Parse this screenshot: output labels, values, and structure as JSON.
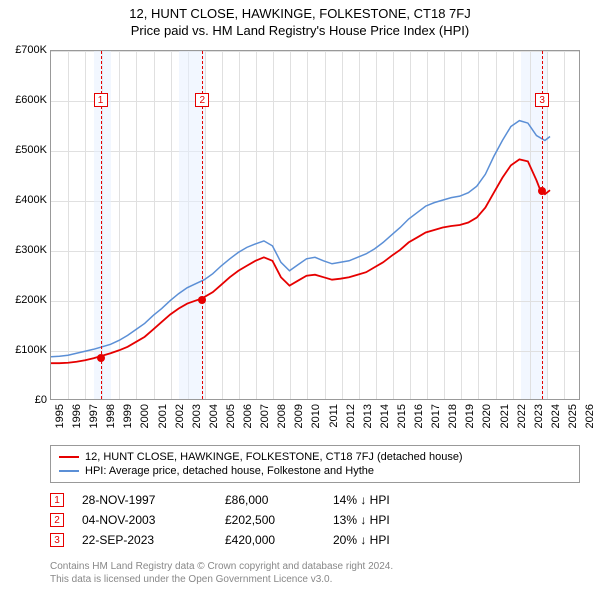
{
  "title1": "12, HUNT CLOSE, HAWKINGE, FOLKESTONE, CT18 7FJ",
  "title2": "Price paid vs. HM Land Registry's House Price Index (HPI)",
  "chart": {
    "type": "line",
    "xlim": [
      1995,
      2026
    ],
    "ylim": [
      0,
      700
    ],
    "ytick_step": 100,
    "ytick_labels": [
      "£0",
      "£100K",
      "£200K",
      "£300K",
      "£400K",
      "£500K",
      "£600K",
      "£700K"
    ],
    "xtick_years": [
      1995,
      1996,
      1997,
      1998,
      1999,
      2000,
      2001,
      2002,
      2003,
      2004,
      2005,
      2006,
      2007,
      2008,
      2009,
      2010,
      2011,
      2012,
      2013,
      2014,
      2015,
      2016,
      2017,
      2018,
      2019,
      2020,
      2021,
      2022,
      2023,
      2024,
      2025,
      2026
    ],
    "highlight_bands": [
      {
        "start": 1997.5,
        "end": 1998.5
      },
      {
        "start": 2002.5,
        "end": 2004.0
      },
      {
        "start": 2022.5,
        "end": 2024.0
      }
    ],
    "marker_lines": [
      {
        "x": 1997.9,
        "label": "1",
        "label_y": 0.12
      },
      {
        "x": 2003.85,
        "label": "2",
        "label_y": 0.12
      },
      {
        "x": 2023.73,
        "label": "3",
        "label_y": 0.12
      }
    ],
    "series": [
      {
        "name": "property",
        "color": "#e60000",
        "width": 1.8,
        "points": [
          [
            1995,
            72
          ],
          [
            1995.5,
            72
          ],
          [
            1996,
            73
          ],
          [
            1996.5,
            75
          ],
          [
            1997,
            78
          ],
          [
            1997.5,
            82
          ],
          [
            1997.9,
            86
          ],
          [
            1998.5,
            92
          ],
          [
            1999,
            98
          ],
          [
            1999.5,
            105
          ],
          [
            2000,
            115
          ],
          [
            2000.5,
            125
          ],
          [
            2001,
            140
          ],
          [
            2001.5,
            155
          ],
          [
            2002,
            170
          ],
          [
            2002.5,
            182
          ],
          [
            2003,
            192
          ],
          [
            2003.5,
            198
          ],
          [
            2003.85,
            202
          ],
          [
            2004.5,
            215
          ],
          [
            2005,
            230
          ],
          [
            2005.5,
            245
          ],
          [
            2006,
            258
          ],
          [
            2006.5,
            268
          ],
          [
            2007,
            278
          ],
          [
            2007.5,
            285
          ],
          [
            2008,
            278
          ],
          [
            2008.5,
            245
          ],
          [
            2009,
            228
          ],
          [
            2009.5,
            238
          ],
          [
            2010,
            248
          ],
          [
            2010.5,
            250
          ],
          [
            2011,
            245
          ],
          [
            2011.5,
            240
          ],
          [
            2012,
            242
          ],
          [
            2012.5,
            245
          ],
          [
            2013,
            250
          ],
          [
            2013.5,
            255
          ],
          [
            2014,
            265
          ],
          [
            2014.5,
            275
          ],
          [
            2015,
            288
          ],
          [
            2015.5,
            300
          ],
          [
            2016,
            315
          ],
          [
            2016.5,
            325
          ],
          [
            2017,
            335
          ],
          [
            2017.5,
            340
          ],
          [
            2018,
            345
          ],
          [
            2018.5,
            348
          ],
          [
            2019,
            350
          ],
          [
            2019.5,
            355
          ],
          [
            2020,
            365
          ],
          [
            2020.5,
            385
          ],
          [
            2021,
            415
          ],
          [
            2021.5,
            445
          ],
          [
            2022,
            470
          ],
          [
            2022.5,
            482
          ],
          [
            2023,
            478
          ],
          [
            2023.5,
            440
          ],
          [
            2023.73,
            420
          ],
          [
            2024,
            412
          ],
          [
            2024.3,
            420
          ]
        ],
        "sale_points": [
          [
            1997.9,
            86
          ],
          [
            2003.85,
            202
          ],
          [
            2023.73,
            420
          ]
        ]
      },
      {
        "name": "hpi",
        "color": "#5b8fd6",
        "width": 1.5,
        "points": [
          [
            1995,
            85
          ],
          [
            1995.5,
            86
          ],
          [
            1996,
            88
          ],
          [
            1996.5,
            92
          ],
          [
            1997,
            96
          ],
          [
            1997.5,
            100
          ],
          [
            1998,
            105
          ],
          [
            1998.5,
            110
          ],
          [
            1999,
            118
          ],
          [
            1999.5,
            128
          ],
          [
            2000,
            140
          ],
          [
            2000.5,
            152
          ],
          [
            2001,
            168
          ],
          [
            2001.5,
            182
          ],
          [
            2002,
            198
          ],
          [
            2002.5,
            212
          ],
          [
            2003,
            224
          ],
          [
            2003.5,
            232
          ],
          [
            2004,
            240
          ],
          [
            2004.5,
            252
          ],
          [
            2005,
            268
          ],
          [
            2005.5,
            282
          ],
          [
            2006,
            295
          ],
          [
            2006.5,
            305
          ],
          [
            2007,
            312
          ],
          [
            2007.5,
            318
          ],
          [
            2008,
            308
          ],
          [
            2008.5,
            275
          ],
          [
            2009,
            258
          ],
          [
            2009.5,
            270
          ],
          [
            2010,
            282
          ],
          [
            2010.5,
            285
          ],
          [
            2011,
            278
          ],
          [
            2011.5,
            272
          ],
          [
            2012,
            275
          ],
          [
            2012.5,
            278
          ],
          [
            2013,
            285
          ],
          [
            2013.5,
            292
          ],
          [
            2014,
            302
          ],
          [
            2014.5,
            315
          ],
          [
            2015,
            330
          ],
          [
            2015.5,
            345
          ],
          [
            2016,
            362
          ],
          [
            2016.5,
            375
          ],
          [
            2017,
            388
          ],
          [
            2017.5,
            395
          ],
          [
            2018,
            400
          ],
          [
            2018.5,
            405
          ],
          [
            2019,
            408
          ],
          [
            2019.5,
            415
          ],
          [
            2020,
            428
          ],
          [
            2020.5,
            452
          ],
          [
            2021,
            488
          ],
          [
            2021.5,
            520
          ],
          [
            2022,
            548
          ],
          [
            2022.5,
            560
          ],
          [
            2023,
            555
          ],
          [
            2023.5,
            530
          ],
          [
            2024,
            520
          ],
          [
            2024.3,
            528
          ]
        ]
      }
    ],
    "background_color": "#ffffff",
    "grid_color": "#e0e0e0",
    "axis_color": "#999999"
  },
  "legend": {
    "items": [
      {
        "color": "#e60000",
        "label": "12, HUNT CLOSE, HAWKINGE, FOLKESTONE, CT18 7FJ (detached house)"
      },
      {
        "color": "#5b8fd6",
        "label": "HPI: Average price, detached house, Folkestone and Hythe"
      }
    ]
  },
  "sales": [
    {
      "marker": "1",
      "date": "28-NOV-1997",
      "price": "£86,000",
      "diff": "14% ↓ HPI"
    },
    {
      "marker": "2",
      "date": "04-NOV-2003",
      "price": "£202,500",
      "diff": "13% ↓ HPI"
    },
    {
      "marker": "3",
      "date": "22-SEP-2023",
      "price": "£420,000",
      "diff": "20% ↓ HPI"
    }
  ],
  "footer": {
    "line1": "Contains HM Land Registry data © Crown copyright and database right 2024.",
    "line2": "This data is licensed under the Open Government Licence v3.0."
  }
}
